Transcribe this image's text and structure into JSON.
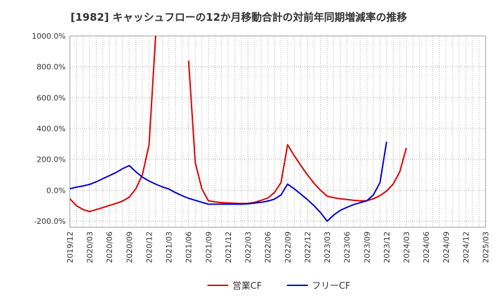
{
  "chart_data": {
    "type": "line",
    "title": "[1982]  キャッシュフローの12か月移動合計の対前年同期増減率の推移",
    "xlabel": "",
    "ylabel": "",
    "ylim": [
      -240,
      1000
    ],
    "yticks": [
      -200,
      0,
      200,
      400,
      600,
      800,
      1000
    ],
    "ytick_labels": [
      "-200.0%",
      "0.0%",
      "200.0%",
      "400.0%",
      "600.0%",
      "800.0%",
      "1000.0%"
    ],
    "x_start": "2019/12",
    "x_end": "2025/03",
    "xtick_labels": [
      "2019/12",
      "2020/03",
      "2020/06",
      "2020/09",
      "2020/12",
      "2021/03",
      "2021/06",
      "2021/09",
      "2021/12",
      "2022/03",
      "2022/06",
      "2022/09",
      "2022/12",
      "2023/03",
      "2023/06",
      "2023/09",
      "2023/12",
      "2024/03",
      "2024/06",
      "2024/09",
      "2024/12",
      "2025/03"
    ],
    "legend_position": "bottom",
    "series": [
      {
        "name": "営業CF",
        "color": "#dd0000",
        "points": [
          [
            "2019/12",
            -55
          ],
          [
            "2020/01",
            -100
          ],
          [
            "2020/02",
            -125
          ],
          [
            "2020/03",
            -138
          ],
          [
            "2020/04",
            -125
          ],
          [
            "2020/05",
            -112
          ],
          [
            "2020/06",
            -98
          ],
          [
            "2020/07",
            -85
          ],
          [
            "2020/08",
            -70
          ],
          [
            "2020/09",
            -45
          ],
          [
            "2020/10",
            10
          ],
          [
            "2020/11",
            100
          ],
          [
            "2020/12",
            295
          ],
          [
            "2021/01",
            1000
          ],
          null,
          [
            "2021/06",
            840
          ],
          [
            "2021/07",
            180
          ],
          [
            "2021/08",
            10
          ],
          [
            "2021/09",
            -68
          ],
          [
            "2021/10",
            -75
          ],
          [
            "2021/11",
            -80
          ],
          [
            "2021/12",
            -82
          ],
          [
            "2022/01",
            -84
          ],
          [
            "2022/02",
            -86
          ],
          [
            "2022/03",
            -85
          ],
          [
            "2022/04",
            -78
          ],
          [
            "2022/05",
            -65
          ],
          [
            "2022/06",
            -50
          ],
          [
            "2022/07",
            -15
          ],
          [
            "2022/08",
            50
          ],
          [
            "2022/09",
            295
          ],
          [
            "2022/10",
            225
          ],
          [
            "2022/11",
            160
          ],
          [
            "2022/12",
            100
          ],
          [
            "2023/01",
            45
          ],
          [
            "2023/02",
            0
          ],
          [
            "2023/03",
            -38
          ],
          [
            "2023/04",
            -48
          ],
          [
            "2023/05",
            -55
          ],
          [
            "2023/06",
            -60
          ],
          [
            "2023/07",
            -65
          ],
          [
            "2023/08",
            -68
          ],
          [
            "2023/09",
            -68
          ],
          [
            "2023/10",
            -55
          ],
          [
            "2023/11",
            -35
          ],
          [
            "2023/12",
            -5
          ],
          [
            "2024/01",
            40
          ],
          [
            "2024/02",
            120
          ],
          [
            "2024/03",
            275
          ]
        ]
      },
      {
        "name": "フリーCF",
        "color": "#0000cc",
        "points": [
          [
            "2019/12",
            10
          ],
          [
            "2020/01",
            20
          ],
          [
            "2020/02",
            28
          ],
          [
            "2020/03",
            38
          ],
          [
            "2020/04",
            55
          ],
          [
            "2020/05",
            75
          ],
          [
            "2020/06",
            95
          ],
          [
            "2020/07",
            115
          ],
          [
            "2020/08",
            140
          ],
          [
            "2020/09",
            160
          ],
          [
            "2020/10",
            120
          ],
          [
            "2020/11",
            85
          ],
          [
            "2020/12",
            60
          ],
          [
            "2021/01",
            40
          ],
          [
            "2021/02",
            22
          ],
          [
            "2021/03",
            8
          ],
          [
            "2021/04",
            -15
          ],
          [
            "2021/05",
            -35
          ],
          [
            "2021/06",
            -52
          ],
          [
            "2021/07",
            -65
          ],
          [
            "2021/08",
            -78
          ],
          [
            "2021/09",
            -90
          ],
          [
            "2021/10",
            -90
          ],
          [
            "2021/11",
            -90
          ],
          [
            "2021/12",
            -90
          ],
          [
            "2022/01",
            -90
          ],
          [
            "2022/02",
            -90
          ],
          [
            "2022/03",
            -88
          ],
          [
            "2022/04",
            -83
          ],
          [
            "2022/05",
            -78
          ],
          [
            "2022/06",
            -70
          ],
          [
            "2022/07",
            -58
          ],
          [
            "2022/08",
            -30
          ],
          [
            "2022/09",
            40
          ],
          [
            "2022/10",
            10
          ],
          [
            "2022/11",
            -25
          ],
          [
            "2022/12",
            -60
          ],
          [
            "2023/01",
            -100
          ],
          [
            "2023/02",
            -145
          ],
          [
            "2023/03",
            -200
          ],
          [
            "2023/04",
            -160
          ],
          [
            "2023/05",
            -130
          ],
          [
            "2023/06",
            -110
          ],
          [
            "2023/07",
            -93
          ],
          [
            "2023/08",
            -80
          ],
          [
            "2023/09",
            -68
          ],
          [
            "2023/10",
            -30
          ],
          [
            "2023/11",
            50
          ],
          [
            "2023/12",
            315
          ]
        ]
      }
    ]
  }
}
